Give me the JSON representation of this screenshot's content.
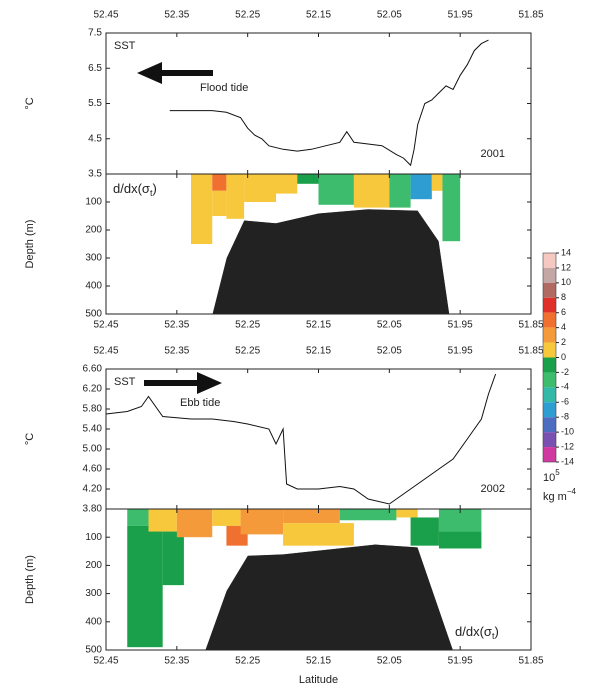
{
  "chart_data": [
    {
      "type": "line",
      "ylabel": "°C",
      "annotations": {
        "name": "SST",
        "tide": "Flood tide",
        "year": "2001"
      },
      "xlim": [
        52.45,
        51.85
      ],
      "xticks": [
        52.45,
        52.35,
        52.25,
        52.15,
        52.05,
        51.95,
        51.85
      ],
      "ylim": [
        3.5,
        7.5
      ],
      "yticks": [
        3.5,
        4.5,
        5.5,
        6.5,
        7.5
      ],
      "color": "#111111",
      "x": [
        52.36,
        52.33,
        52.3,
        52.28,
        52.26,
        52.25,
        52.24,
        52.23,
        52.22,
        52.2,
        52.18,
        52.16,
        52.14,
        52.12,
        52.11,
        52.1,
        52.08,
        52.06,
        52.04,
        52.03,
        52.02,
        52.015,
        52.01,
        52.0,
        51.99,
        51.98,
        51.97,
        51.96,
        51.95,
        51.94,
        51.93,
        51.92,
        51.91
      ],
      "values": [
        5.3,
        5.3,
        5.3,
        5.25,
        5.1,
        4.8,
        4.6,
        4.5,
        4.3,
        4.2,
        4.15,
        4.2,
        4.3,
        4.4,
        4.7,
        4.4,
        4.35,
        4.3,
        4.05,
        3.95,
        3.75,
        4.2,
        4.9,
        5.5,
        5.6,
        5.8,
        6.0,
        5.9,
        6.3,
        6.6,
        7.0,
        7.2,
        7.3
      ]
    },
    {
      "type": "section",
      "ylabel": "Depth (m)",
      "section_label": [
        "d/dx(σ",
        "t",
        ")"
      ],
      "xlim": [
        52.45,
        51.85
      ],
      "xticks": [
        52.45,
        52.35,
        52.25,
        52.15,
        52.05,
        51.95,
        51.85
      ],
      "ylim": [
        0,
        500
      ],
      "y_inverted": true,
      "yticks": [
        100,
        200,
        300,
        400,
        500
      ],
      "bathymetry_color": "#222222",
      "cells": [
        {
          "x0": 52.33,
          "x1": 52.3,
          "d0": 0,
          "d1": 250,
          "value": 1
        },
        {
          "x0": 52.3,
          "x1": 52.28,
          "d0": 0,
          "d1": 60,
          "value": 5
        },
        {
          "x0": 52.3,
          "x1": 52.28,
          "d0": 60,
          "d1": 150,
          "value": 1
        },
        {
          "x0": 52.28,
          "x1": 52.255,
          "d0": 0,
          "d1": 160,
          "value": 1
        },
        {
          "x0": 52.255,
          "x1": 52.21,
          "d0": 0,
          "d1": 100,
          "value": 1
        },
        {
          "x0": 52.21,
          "x1": 52.18,
          "d0": 0,
          "d1": 70,
          "value": 1
        },
        {
          "x0": 52.18,
          "x1": 52.15,
          "d0": 0,
          "d1": 35,
          "value": -1
        },
        {
          "x0": 52.15,
          "x1": 52.1,
          "d0": 0,
          "d1": 110,
          "value": -3
        },
        {
          "x0": 52.1,
          "x1": 52.05,
          "d0": 0,
          "d1": 120,
          "value": 1
        },
        {
          "x0": 52.05,
          "x1": 52.02,
          "d0": 0,
          "d1": 120,
          "value": -3
        },
        {
          "x0": 52.02,
          "x1": 51.99,
          "d0": 0,
          "d1": 90,
          "value": -7
        },
        {
          "x0": 51.99,
          "x1": 51.975,
          "d0": 0,
          "d1": 60,
          "value": 1
        },
        {
          "x0": 51.975,
          "x1": 51.95,
          "d0": 0,
          "d1": 240,
          "value": -3
        }
      ],
      "bathymetry": {
        "x": [
          52.3,
          52.28,
          52.255,
          52.21,
          52.15,
          52.08,
          52.01,
          51.98,
          51.965
        ],
        "depth": [
          500,
          300,
          165,
          175,
          140,
          125,
          130,
          240,
          500
        ]
      }
    },
    {
      "type": "line",
      "ylabel": "°C",
      "annotations": {
        "name": "SST",
        "tide": "Ebb tide",
        "year": "2002"
      },
      "xlim": [
        52.45,
        51.85
      ],
      "xticks": [
        52.45,
        52.35,
        52.25,
        52.15,
        52.05,
        51.95,
        51.85
      ],
      "ylim": [
        3.8,
        6.6
      ],
      "yticks": [
        {
          "value": 3.8,
          "label": "3.80"
        },
        {
          "value": 4.2,
          "label": "4.20"
        },
        {
          "value": 4.6,
          "label": "4.60"
        },
        {
          "value": 5.0,
          "label": "5.00"
        },
        {
          "value": 5.4,
          "label": "5.40"
        },
        {
          "value": 5.8,
          "label": "5.80"
        },
        {
          "value": 6.2,
          "label": "6.20"
        },
        {
          "value": 6.6,
          "label": "6.60"
        }
      ],
      "color": "#111111",
      "x": [
        52.45,
        52.42,
        52.4,
        52.39,
        52.37,
        52.33,
        52.3,
        52.27,
        52.25,
        52.22,
        52.21,
        52.2,
        52.195,
        52.18,
        52.15,
        52.12,
        52.1,
        52.08,
        52.05,
        52.03,
        52.0,
        51.98,
        51.96,
        51.94,
        51.92,
        51.91,
        51.9
      ],
      "values": [
        5.7,
        5.75,
        5.85,
        6.05,
        5.65,
        5.6,
        5.6,
        5.55,
        5.5,
        5.4,
        5.1,
        5.4,
        4.3,
        4.2,
        4.2,
        4.25,
        4.2,
        4.0,
        3.9,
        4.1,
        4.4,
        4.6,
        4.8,
        5.2,
        5.6,
        6.1,
        6.5
      ]
    },
    {
      "type": "section",
      "ylabel": "Depth (m)",
      "xlabel": "Latitude",
      "section_label": [
        "d/dx(σ",
        "t",
        ")"
      ],
      "xlim": [
        52.45,
        51.85
      ],
      "xticks": [
        52.45,
        52.35,
        52.25,
        52.15,
        52.05,
        51.95,
        51.85
      ],
      "ylim": [
        0,
        500
      ],
      "y_inverted": true,
      "yticks": [
        100,
        200,
        300,
        400,
        500
      ],
      "bathymetry_color": "#222222",
      "cells": [
        {
          "x0": 52.42,
          "x1": 52.39,
          "d0": 0,
          "d1": 60,
          "value": -3
        },
        {
          "x0": 52.42,
          "x1": 52.37,
          "d0": 60,
          "d1": 490,
          "value": -1
        },
        {
          "x0": 52.39,
          "x1": 52.35,
          "d0": 0,
          "d1": 80,
          "value": 1
        },
        {
          "x0": 52.37,
          "x1": 52.34,
          "d0": 80,
          "d1": 270,
          "value": -1
        },
        {
          "x0": 52.35,
          "x1": 52.3,
          "d0": 0,
          "d1": 100,
          "value": 3
        },
        {
          "x0": 52.3,
          "x1": 52.26,
          "d0": 0,
          "d1": 60,
          "value": 1
        },
        {
          "x0": 52.28,
          "x1": 52.25,
          "d0": 60,
          "d1": 130,
          "value": 5
        },
        {
          "x0": 52.26,
          "x1": 52.2,
          "d0": 0,
          "d1": 90,
          "value": 3
        },
        {
          "x0": 52.2,
          "x1": 52.12,
          "d0": 0,
          "d1": 50,
          "value": 3
        },
        {
          "x0": 52.2,
          "x1": 52.1,
          "d0": 50,
          "d1": 130,
          "value": 1
        },
        {
          "x0": 52.12,
          "x1": 52.04,
          "d0": 0,
          "d1": 40,
          "value": -3
        },
        {
          "x0": 52.04,
          "x1": 52.01,
          "d0": 0,
          "d1": 30,
          "value": 1
        },
        {
          "x0": 52.02,
          "x1": 51.98,
          "d0": 30,
          "d1": 130,
          "value": -1
        },
        {
          "x0": 51.98,
          "x1": 51.92,
          "d0": 0,
          "d1": 80,
          "value": -3
        },
        {
          "x0": 51.98,
          "x1": 51.92,
          "d0": 80,
          "d1": 140,
          "value": -1
        }
      ],
      "bathymetry": {
        "x": [
          52.31,
          52.28,
          52.25,
          52.2,
          52.07,
          52.01,
          51.96
        ],
        "depth": [
          500,
          290,
          165,
          160,
          125,
          135,
          500
        ]
      }
    },
    {
      "type": "colorbar",
      "unit": [
        "10",
        "5",
        "kg m",
        "−4"
      ],
      "ticks": [
        14,
        12,
        10,
        8,
        6,
        4,
        2,
        0,
        -2,
        -4,
        -6,
        -8,
        -10,
        -12,
        -14
      ],
      "colors": [
        "#f6c8c2",
        "#c4a6a4",
        "#b06a62",
        "#e0302a",
        "#f07030",
        "#f59a3a",
        "#f8c83c",
        "#1aa04a",
        "#3cbc6c",
        "#34b8a8",
        "#2e9ed2",
        "#4d6ec0",
        "#7a50b0",
        "#d03aa0"
      ]
    }
  ]
}
